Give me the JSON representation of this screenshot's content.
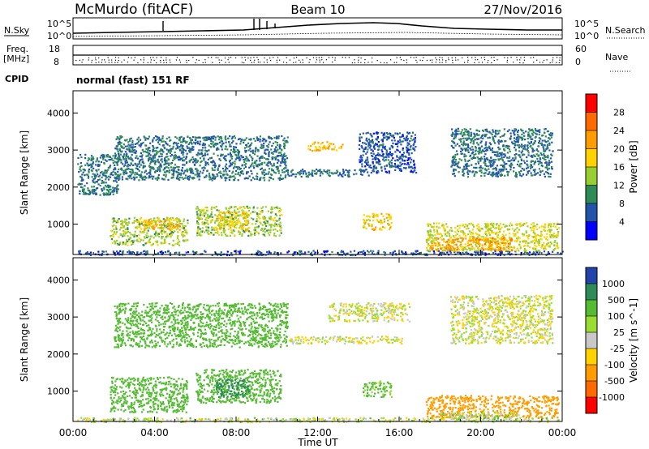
{
  "header": {
    "station": "McMurdo (fitACF)",
    "beam": "Beam 10",
    "date": "27/Nov/2016"
  },
  "noise_panel": {
    "left_label": "N.Sky",
    "right_label": "N.Search",
    "left_ticks": [
      "10^5",
      "10^0"
    ],
    "right_ticks": [
      "10^5",
      "10^0"
    ]
  },
  "freq_panel": {
    "left_label_top": "Freq.",
    "left_label_bottom": "[MHz]",
    "left_ticks": [
      "18",
      "8"
    ],
    "right_label": "Nave",
    "right_ticks": [
      "60",
      "0"
    ]
  },
  "cpid": {
    "label": "CPID",
    "text": "normal (fast) 151 RF"
  },
  "chart_data": [
    {
      "type": "heatmap",
      "name": "power",
      "xlabel": "Time UT",
      "ylabel": "Slant Range [km]",
      "xlim": [
        0,
        24
      ],
      "ylim": [
        180,
        4600
      ],
      "xticks": [
        "00:00",
        "04:00",
        "08:00",
        "12:00",
        "16:00",
        "20:00",
        "00:00"
      ],
      "yticks": [
        1000,
        2000,
        3000,
        4000
      ],
      "colorbar": {
        "label": "Power [dB]",
        "ticks": [
          28,
          24,
          20,
          16,
          12,
          8,
          4
        ],
        "colors": [
          "#ff0000",
          "#ff6a00",
          "#ff9c00",
          "#ffd200",
          "#9acd32",
          "#2e8b57",
          "#2255aa",
          "#0000ff"
        ]
      },
      "regions": [
        {
          "t0": 0.2,
          "t1": 24,
          "r0": 180,
          "r1": 300,
          "v": 6
        },
        {
          "t0": 0.2,
          "t1": 2.2,
          "r0": 1800,
          "r1": 2900,
          "v": 8
        },
        {
          "t0": 1.8,
          "t1": 5.6,
          "r0": 450,
          "r1": 1200,
          "v": 14
        },
        {
          "t0": 3.2,
          "t1": 5.2,
          "r0": 850,
          "r1": 1150,
          "v": 20
        },
        {
          "t0": 2.0,
          "t1": 10.5,
          "r0": 2200,
          "r1": 3400,
          "v": 8
        },
        {
          "t0": 6.0,
          "t1": 10.2,
          "r0": 700,
          "r1": 1500,
          "v": 14
        },
        {
          "t0": 7.0,
          "t1": 8.6,
          "r0": 850,
          "r1": 1350,
          "v": 18
        },
        {
          "t0": 11.5,
          "t1": 13.2,
          "r0": 3000,
          "r1": 3250,
          "v": 20
        },
        {
          "t0": 10.5,
          "t1": 14.5,
          "r0": 2300,
          "r1": 2500,
          "v": 8
        },
        {
          "t0": 14.2,
          "t1": 15.6,
          "r0": 850,
          "r1": 1300,
          "v": 18
        },
        {
          "t0": 14.0,
          "t1": 16.8,
          "r0": 2400,
          "r1": 3500,
          "v": 6
        },
        {
          "t0": 17.3,
          "t1": 23.8,
          "r0": 300,
          "r1": 1050,
          "v": 16
        },
        {
          "t0": 17.5,
          "t1": 21.5,
          "r0": 300,
          "r1": 650,
          "v": 22
        },
        {
          "t0": 18.5,
          "t1": 23.5,
          "r0": 2300,
          "r1": 3600,
          "v": 8
        }
      ]
    },
    {
      "type": "heatmap",
      "name": "velocity",
      "xlabel": "Time UT",
      "ylabel": "Slant Range [km]",
      "xlim": [
        0,
        24
      ],
      "ylim": [
        180,
        4600
      ],
      "xticks": [
        "00:00",
        "04:00",
        "08:00",
        "12:00",
        "16:00",
        "20:00",
        "00:00"
      ],
      "yticks": [
        1000,
        2000,
        3000,
        4000
      ],
      "colorbar": {
        "label": "Velocity [m s^-1]",
        "ticks": [
          1000,
          500,
          100,
          25,
          -25,
          -100,
          -500,
          -1000
        ],
        "colors": [
          "#2244aa",
          "#2e8b57",
          "#55bb33",
          "#99dd33",
          "#c8c8c8",
          "#ffd200",
          "#ff9c00",
          "#ff6a00",
          "#ff0000"
        ]
      },
      "regions": [
        {
          "t0": 0.2,
          "t1": 24,
          "r0": 180,
          "r1": 300,
          "v": 30
        },
        {
          "t0": 1.8,
          "t1": 5.6,
          "r0": 450,
          "r1": 1400,
          "v": 300
        },
        {
          "t0": 6.0,
          "t1": 10.2,
          "r0": 700,
          "r1": 1600,
          "v": 300
        },
        {
          "t0": 7.0,
          "t1": 8.6,
          "r0": 850,
          "r1": 1350,
          "v": 800
        },
        {
          "t0": 2.0,
          "t1": 10.5,
          "r0": 2200,
          "r1": 3400,
          "v": 300
        },
        {
          "t0": 10.5,
          "t1": 16.2,
          "r0": 2300,
          "r1": 2500,
          "v": 0
        },
        {
          "t0": 12.5,
          "t1": 16.5,
          "r0": 2900,
          "r1": 3400,
          "v": 0
        },
        {
          "t0": 14.2,
          "t1": 15.6,
          "r0": 850,
          "r1": 1300,
          "v": 150
        },
        {
          "t0": 17.3,
          "t1": 23.8,
          "r0": 300,
          "r1": 900,
          "v": -300
        },
        {
          "t0": 18.0,
          "t1": 22.0,
          "r0": 250,
          "r1": 450,
          "v": 50
        },
        {
          "t0": 18.5,
          "t1": 23.5,
          "r0": 2300,
          "r1": 3600,
          "v": 0
        }
      ]
    }
  ]
}
